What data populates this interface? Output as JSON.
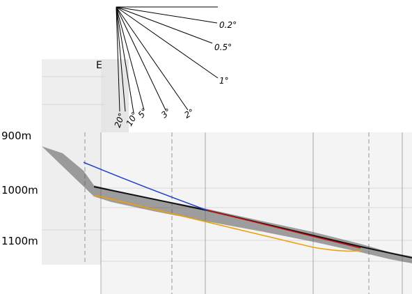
{
  "depth_labels": [
    "900m",
    "1000m",
    "1100m"
  ],
  "slope_scale": {
    "labels": [
      "0.2°",
      "0.5°",
      "1°",
      "2°",
      "3°",
      "5°",
      "10°",
      "20°"
    ]
  }
}
